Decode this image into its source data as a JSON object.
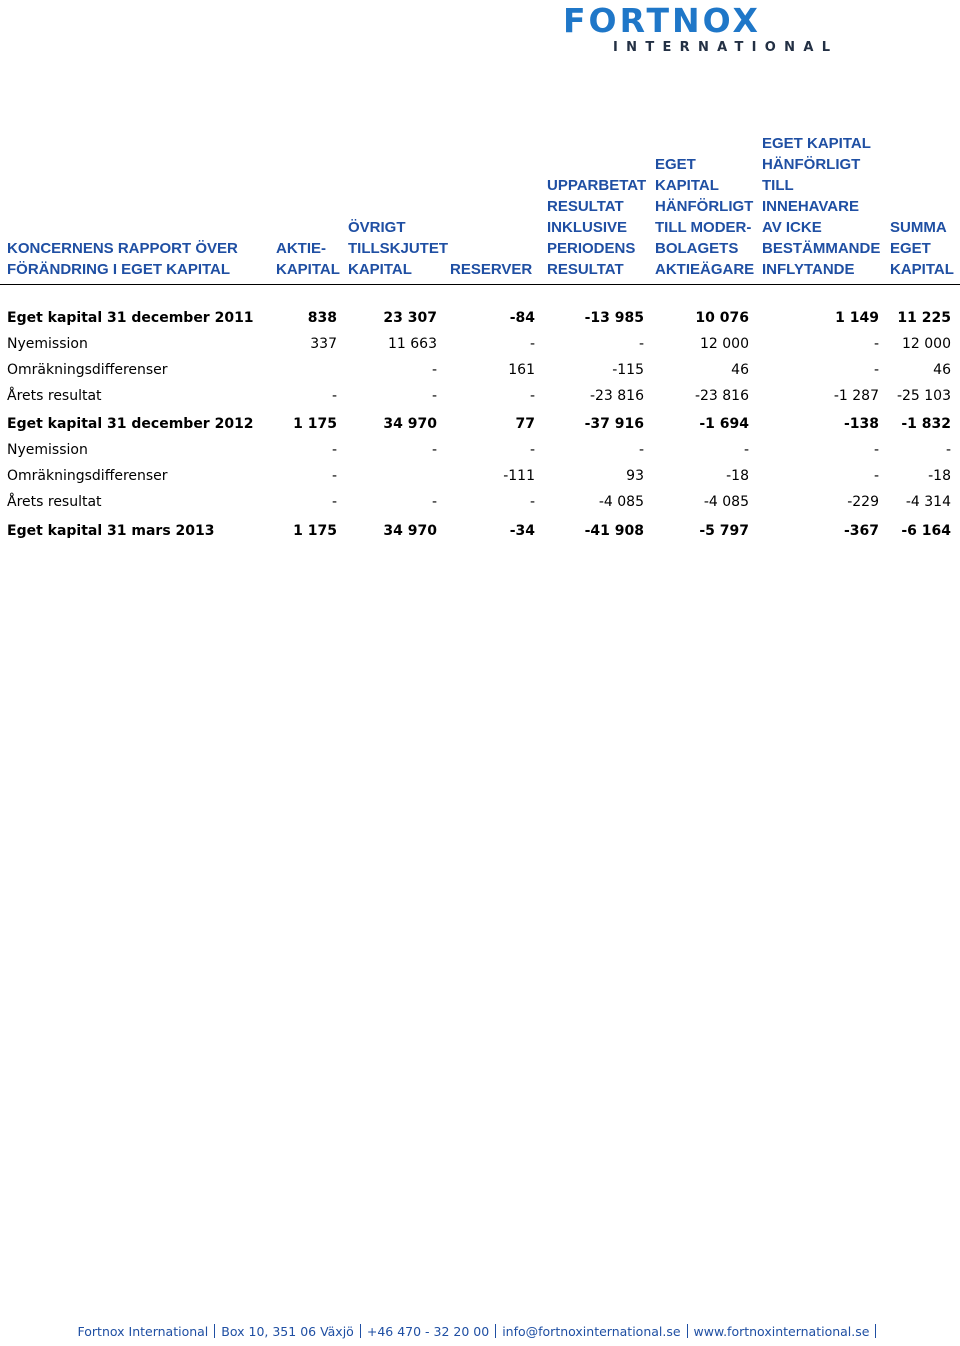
{
  "logo": {
    "word": "FORTNOX",
    "sub": "INTERNATIONAL"
  },
  "header": {
    "title": "KONCERNENS RAPPORT ÖVER\nFÖRÄNDRING I EGET KAPITAL",
    "columns": [
      "AKTIE-\nKAPITAL",
      "ÖVRIGT\nTILLSKJUTET\nKAPITAL",
      "RESERVER",
      "UPPARBETAT\nRESULTAT\nINKLUSIVE\nPERIODENS\nRESULTAT",
      "EGET\nKAPITAL\nHÄNFÖRLIGT\nTILL MODER-\nBOLAGETS\nAKTIEÄGARE",
      "EGET KAPITAL\nHÄNFÖRLIGT\nTILL\nINNEHAVARE\nAV ICKE\nBESTÄMMANDE\nINFLYTANDE",
      "SUMMA\nEGET\nKAPITAL"
    ]
  },
  "rows": [
    {
      "label": "Eget kapital 31 december 2011",
      "bold": true,
      "values": [
        "838",
        "23 307",
        "-84",
        "-13 985",
        "10 076",
        "1 149",
        "11 225"
      ]
    },
    {
      "label": "Nyemission",
      "bold": false,
      "values": [
        "337",
        "11 663",
        "-",
        "-",
        "12 000",
        "-",
        "12 000"
      ]
    },
    {
      "label": "Omräkningsdifferenser",
      "bold": false,
      "values": [
        "",
        "-",
        "161",
        "-115",
        "46",
        "-",
        "46"
      ]
    },
    {
      "label": "Årets resultat",
      "bold": false,
      "values": [
        "-",
        "-",
        "-",
        "-23 816",
        "-23 816",
        "-1 287",
        "-25 103"
      ]
    },
    {
      "label": "Eget kapital 31 december 2012",
      "bold": true,
      "values": [
        "1 175",
        "34 970",
        "77",
        "-37 916",
        "-1 694",
        "-138",
        "-1 832"
      ]
    },
    {
      "label": "Nyemission",
      "bold": false,
      "values": [
        "-",
        "-",
        "-",
        "-",
        "-",
        "-",
        "-"
      ]
    },
    {
      "label": "Omräkningsdifferenser",
      "bold": false,
      "values": [
        "-",
        "",
        "-111",
        "93",
        "-18",
        "-",
        "-18"
      ]
    },
    {
      "label": "Årets resultat",
      "bold": false,
      "values": [
        "-",
        "-",
        "-",
        "-4 085",
        "-4 085",
        "-229",
        "-4 314"
      ]
    },
    {
      "label": "Eget kapital 31 mars 2013",
      "bold": true,
      "values": [
        "1 175",
        "34 970",
        "-34",
        "-41 908",
        "-5 797",
        "-367",
        "-6 164"
      ]
    }
  ],
  "footer": {
    "company": "Fortnox International",
    "address": "Box 10, 351 06 Växjö",
    "phone": "+46 470 - 32 20 00",
    "email": "info@fortnoxinternational.se",
    "web": "www.fortnoxinternational.se"
  },
  "colors": {
    "header_text": "#1f4fa3",
    "logo_blue": "#1f77c8",
    "logo_dark": "#233044"
  }
}
